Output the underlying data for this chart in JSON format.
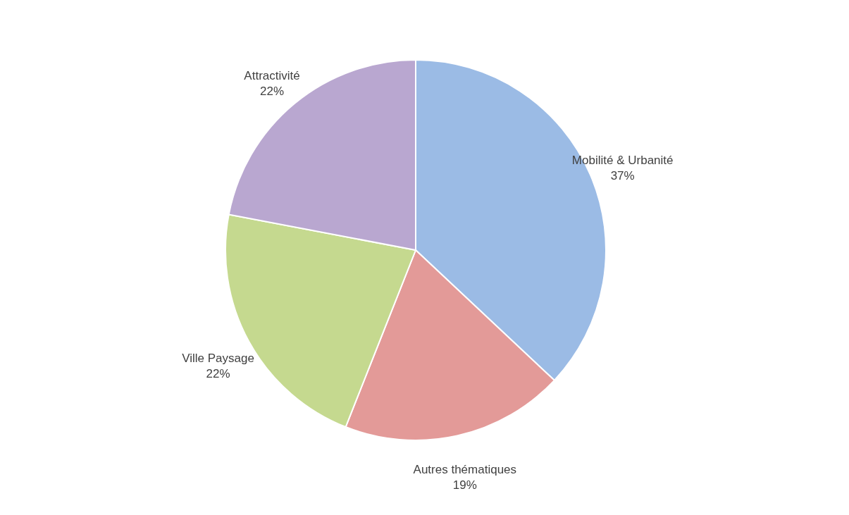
{
  "chart_data": {
    "type": "pie",
    "categories": [
      "Mobilité & Urbanité",
      "Autres thématiques",
      "Ville Paysage",
      "Attractivité"
    ],
    "values": [
      37,
      19,
      22,
      22
    ],
    "value_labels": [
      "37%",
      "19%",
      "22%",
      "22%"
    ],
    "colors": [
      "#9bbbe5",
      "#e39a98",
      "#c5d98f",
      "#b9a7d0"
    ],
    "legend": false
  }
}
